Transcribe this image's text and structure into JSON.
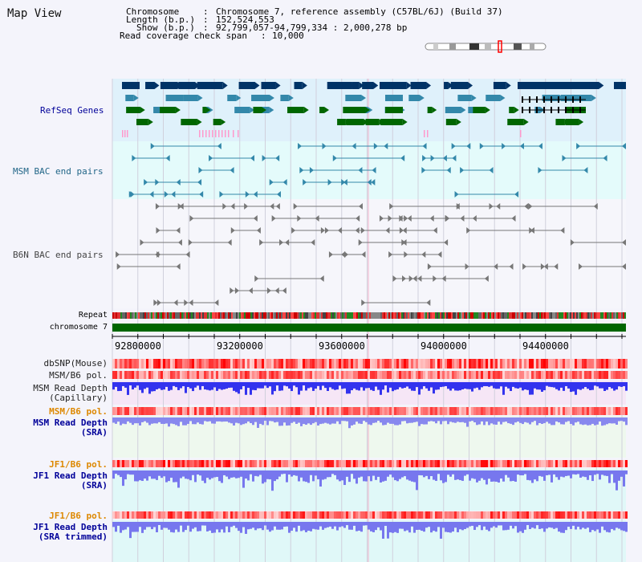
{
  "header": {
    "title": "Map View",
    "chromosome_label": "Chromosome",
    "chromosome_value": "Chromosome 7, reference assembly (C57BL/6J) (Build 37)",
    "length_label": "Length (b.p.)",
    "length_value": "152,524,553",
    "show_label": "Show (b.p.)",
    "show_value": "92,799,057-94,799,334 : 2,000,278 bp",
    "coverage_label": "Read coverage check span",
    "coverage_value": "10,000"
  },
  "tracks": {
    "refseq": "RefSeq Genes",
    "msm_bac": "MSM BAC end pairs",
    "b6n_bac": "B6N BAC end pairs",
    "repeat": "Repeat",
    "chromosome": "chromosome 7",
    "dbsnp": "dbSNP(Mouse)",
    "msm_b6_pol": "MSM/B6 pol.",
    "msm_depth_cap_1": "MSM Read Depth",
    "msm_depth_cap_2": "(Capillary)",
    "msm_b6_pol_2": "MSM/B6 pol.",
    "msm_depth_sra_1": "MSM Read Depth",
    "msm_depth_sra_2": "(SRA)",
    "jf1_b6_pol": "JF1/B6 pol.",
    "jf1_depth_sra_1": "JF1 Read Depth",
    "jf1_depth_sra_2": "(SRA)",
    "jf1_b6_pol_2": "JF1/B6 pol.",
    "jf1_depth_trim_1": "JF1 Read Depth",
    "jf1_depth_trim_2": "(SRA trimmed)"
  },
  "axis": {
    "ticks": [
      "92800000",
      "93200000",
      "93600000",
      "94000000",
      "94400000"
    ]
  },
  "colors": {
    "refseq_dark": "#003366",
    "refseq_mid": "#3388aa",
    "refseq_green": "#006600",
    "refseq_pink": "#ff99cc",
    "msm_bac": "#3388aa",
    "b6n_bac": "#777777",
    "chromosome": "#006600",
    "depth_blue": "#3333ee",
    "pol_orange": "#dd8800",
    "label_blue": "#000099",
    "label_teal": "#226688"
  }
}
